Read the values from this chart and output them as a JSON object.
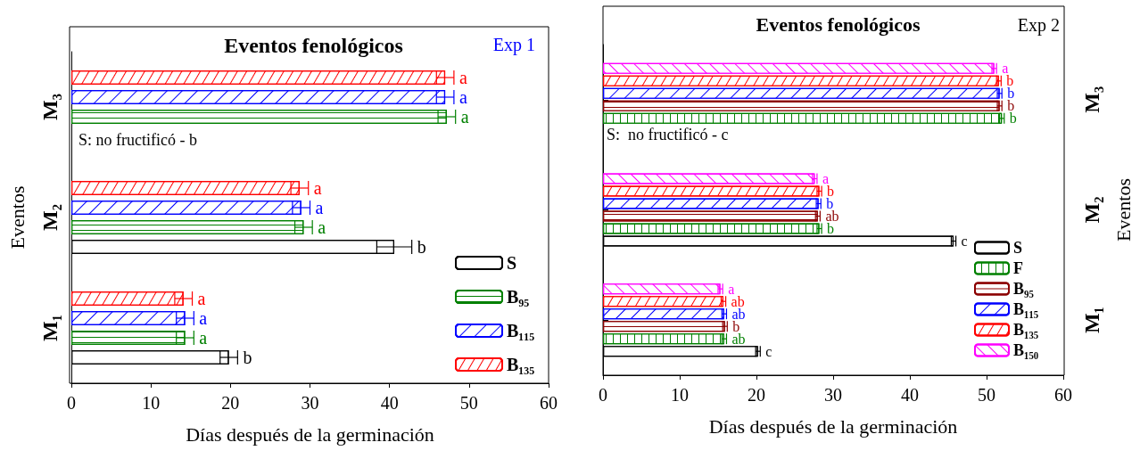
{
  "chart_data": [
    {
      "type": "bar",
      "orientation": "horizontal",
      "title": "Eventos fenológicos",
      "xlabel": "Días después de la germinación",
      "ylabel": "Eventos",
      "annotations": [
        "Exp 1",
        "S: no fructificó - b"
      ],
      "categories": [
        "M₃",
        "M₂",
        "M₁"
      ],
      "xlim": [
        0,
        60
      ],
      "xticks": [
        0,
        10,
        20,
        30,
        40,
        50,
        60
      ],
      "grid": false,
      "legend": "bottom right",
      "series": [
        {
          "name": "S",
          "color": "#000000",
          "values": [
            null,
            40.6,
            19.8
          ],
          "errors": [
            null,
            2.2,
            1.1
          ],
          "value_labels": [
            null,
            "b",
            "b"
          ]
        },
        {
          "name": "B₉₅",
          "color": "#008000",
          "values": [
            47.2,
            29.2,
            14.3
          ],
          "errors": [
            1.1,
            1.1,
            1.1
          ],
          "value_labels": [
            "a",
            "a",
            "a"
          ]
        },
        {
          "name": "B₁₁₅",
          "color": "#0000ff",
          "values": [
            47.0,
            28.9,
            14.3
          ],
          "errors": [
            1.1,
            1.1,
            1.1
          ],
          "value_labels": [
            "a",
            "a",
            "a"
          ]
        },
        {
          "name": "B₁₃₅",
          "color": "#ff0000",
          "values": [
            47.0,
            28.7,
            14.1
          ],
          "errors": [
            1.1,
            1.1,
            1.1
          ],
          "value_labels": [
            "a",
            "a",
            "a"
          ]
        }
      ]
    },
    {
      "type": "bar",
      "orientation": "horizontal",
      "title": "Eventos fenológicos",
      "xlabel": "Días después de la germinación",
      "ylabel": "Eventos",
      "annotations": [
        "Exp 2",
        "S:  no fructificó - c"
      ],
      "categories": [
        "M₃",
        "M₂",
        "M₁"
      ],
      "xlim": [
        0,
        60
      ],
      "xticks": [
        0,
        10,
        20,
        30,
        40,
        50,
        60
      ],
      "grid": false,
      "legend": "bottom right",
      "series": [
        {
          "name": "S",
          "color": "#000000",
          "values": [
            null,
            45.7,
            20.2
          ],
          "errors": [
            null,
            0.3,
            0.3
          ],
          "value_labels": [
            null,
            "c",
            "c"
          ]
        },
        {
          "name": "F",
          "color": "#008000",
          "values": [
            52.0,
            28.2,
            15.8
          ],
          "errors": [
            0.3,
            0.3,
            0.3
          ],
          "value_labels": [
            "b",
            "b",
            "ab"
          ]
        },
        {
          "name": "B₉₅",
          "color": "#8b0000",
          "values": [
            51.7,
            28.0,
            15.9
          ],
          "errors": [
            0.3,
            0.3,
            0.3
          ],
          "value_labels": [
            "b",
            "ab",
            "b"
          ]
        },
        {
          "name": "B₁₁₅",
          "color": "#0000ff",
          "values": [
            51.7,
            28.1,
            15.8
          ],
          "errors": [
            0.3,
            0.3,
            0.3
          ],
          "value_labels": [
            "b",
            "b",
            "ab"
          ]
        },
        {
          "name": "B₁₃₅",
          "color": "#ff0000",
          "values": [
            51.6,
            28.2,
            15.7
          ],
          "errors": [
            0.3,
            0.3,
            0.3
          ],
          "value_labels": [
            "b",
            "b",
            "ab"
          ]
        },
        {
          "name": "B₁₅₀",
          "color": "#ff00ff",
          "values": [
            51.0,
            27.6,
            15.3
          ],
          "errors": [
            0.3,
            0.3,
            0.3
          ],
          "value_labels": [
            "a",
            "a",
            "a"
          ]
        }
      ]
    }
  ]
}
